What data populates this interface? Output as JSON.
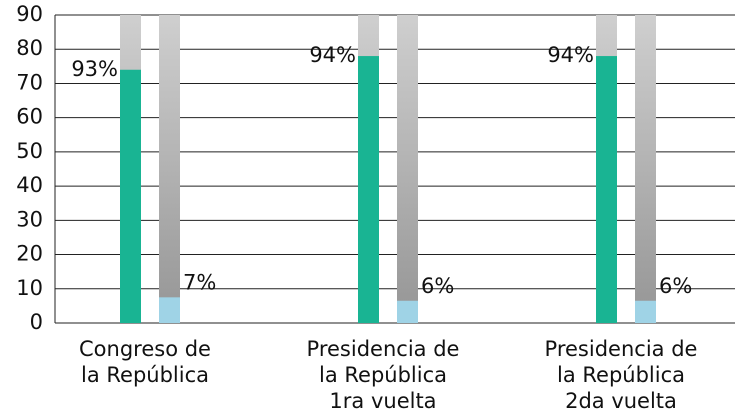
{
  "chart_data": {
    "type": "bar",
    "categories": [
      [
        "Congreso de",
        "la República"
      ],
      [
        "Presidencia de",
        "la República",
        "1ra vuelta"
      ],
      [
        "Presidencia de",
        "la República",
        "2da vuelta"
      ]
    ],
    "series": [
      {
        "color": "#19b493",
        "values": [
          74,
          78,
          78
        ]
      },
      {
        "color": "#9fd3e6",
        "values": [
          7.5,
          6.5,
          6.5
        ]
      }
    ],
    "annotations": [
      [
        "93%",
        "94%",
        "94%"
      ],
      [
        "7%",
        "6%",
        "6%"
      ]
    ],
    "ylim": [
      0,
      90
    ],
    "yticks": [
      0,
      10,
      20,
      30,
      40,
      50,
      60,
      70,
      80,
      90
    ],
    "grid": true
  }
}
